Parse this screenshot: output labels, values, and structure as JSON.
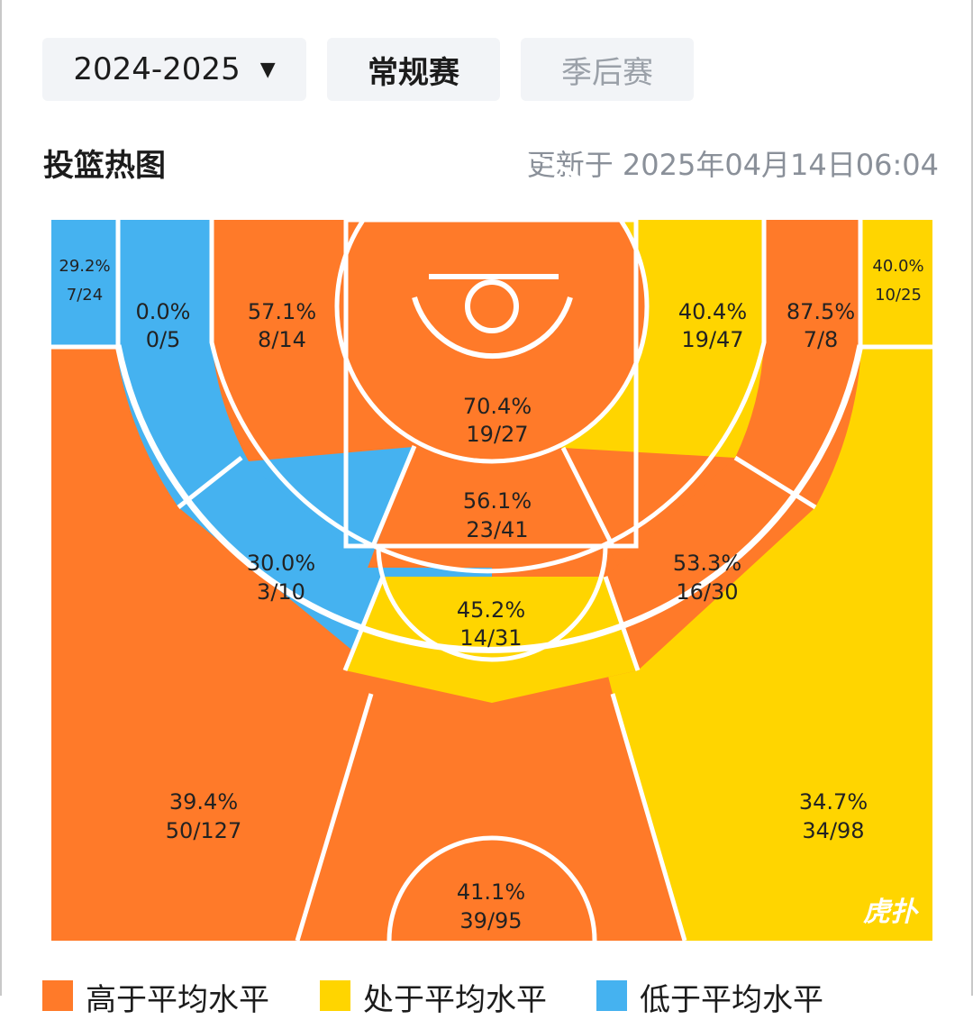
{
  "filters": {
    "season": "2024-2025",
    "regular_label": "常规赛",
    "playoff_label": "季后赛",
    "selected": "常规赛"
  },
  "header": {
    "title": "投篮热图",
    "updated": "更新于 2025年04月14日06:04"
  },
  "colors": {
    "above": "#FF7A29",
    "average": "#FFD500",
    "below": "#45B2F0"
  },
  "zones": {
    "corner3_left": {
      "pct": "29.2%",
      "made_att": "7/24",
      "rating": "below"
    },
    "left_mid_base": {
      "pct": "0.0%",
      "made_att": "0/5",
      "rating": "below"
    },
    "left_short": {
      "pct": "57.1%",
      "made_att": "8/14",
      "rating": "above"
    },
    "restricted": {
      "pct": "70.4%",
      "made_att": "19/27",
      "rating": "above"
    },
    "right_short": {
      "pct": "40.4%",
      "made_att": "19/47",
      "rating": "average"
    },
    "right_mid_base": {
      "pct": "87.5%",
      "made_att": "7/8",
      "rating": "above"
    },
    "corner3_right": {
      "pct": "40.0%",
      "made_att": "10/25",
      "rating": "average"
    },
    "paint_mid": {
      "pct": "56.1%",
      "made_att": "23/41",
      "rating": "above"
    },
    "left_mid_wing": {
      "pct": "30.0%",
      "made_att": "3/10",
      "rating": "below"
    },
    "right_mid_wing": {
      "pct": "53.3%",
      "made_att": "16/30",
      "rating": "above"
    },
    "top_mid": {
      "pct": "45.2%",
      "made_att": "14/31",
      "rating": "average"
    },
    "left_wing3": {
      "pct": "39.4%",
      "made_att": "50/127",
      "rating": "above"
    },
    "right_wing3": {
      "pct": "34.7%",
      "made_att": "34/98",
      "rating": "average"
    },
    "top3": {
      "pct": "41.1%",
      "made_att": "39/95",
      "rating": "above"
    }
  },
  "watermark": "虎扑",
  "legend": {
    "above": "高于平均水平",
    "average": "处于平均水平",
    "below": "低于平均水平"
  }
}
